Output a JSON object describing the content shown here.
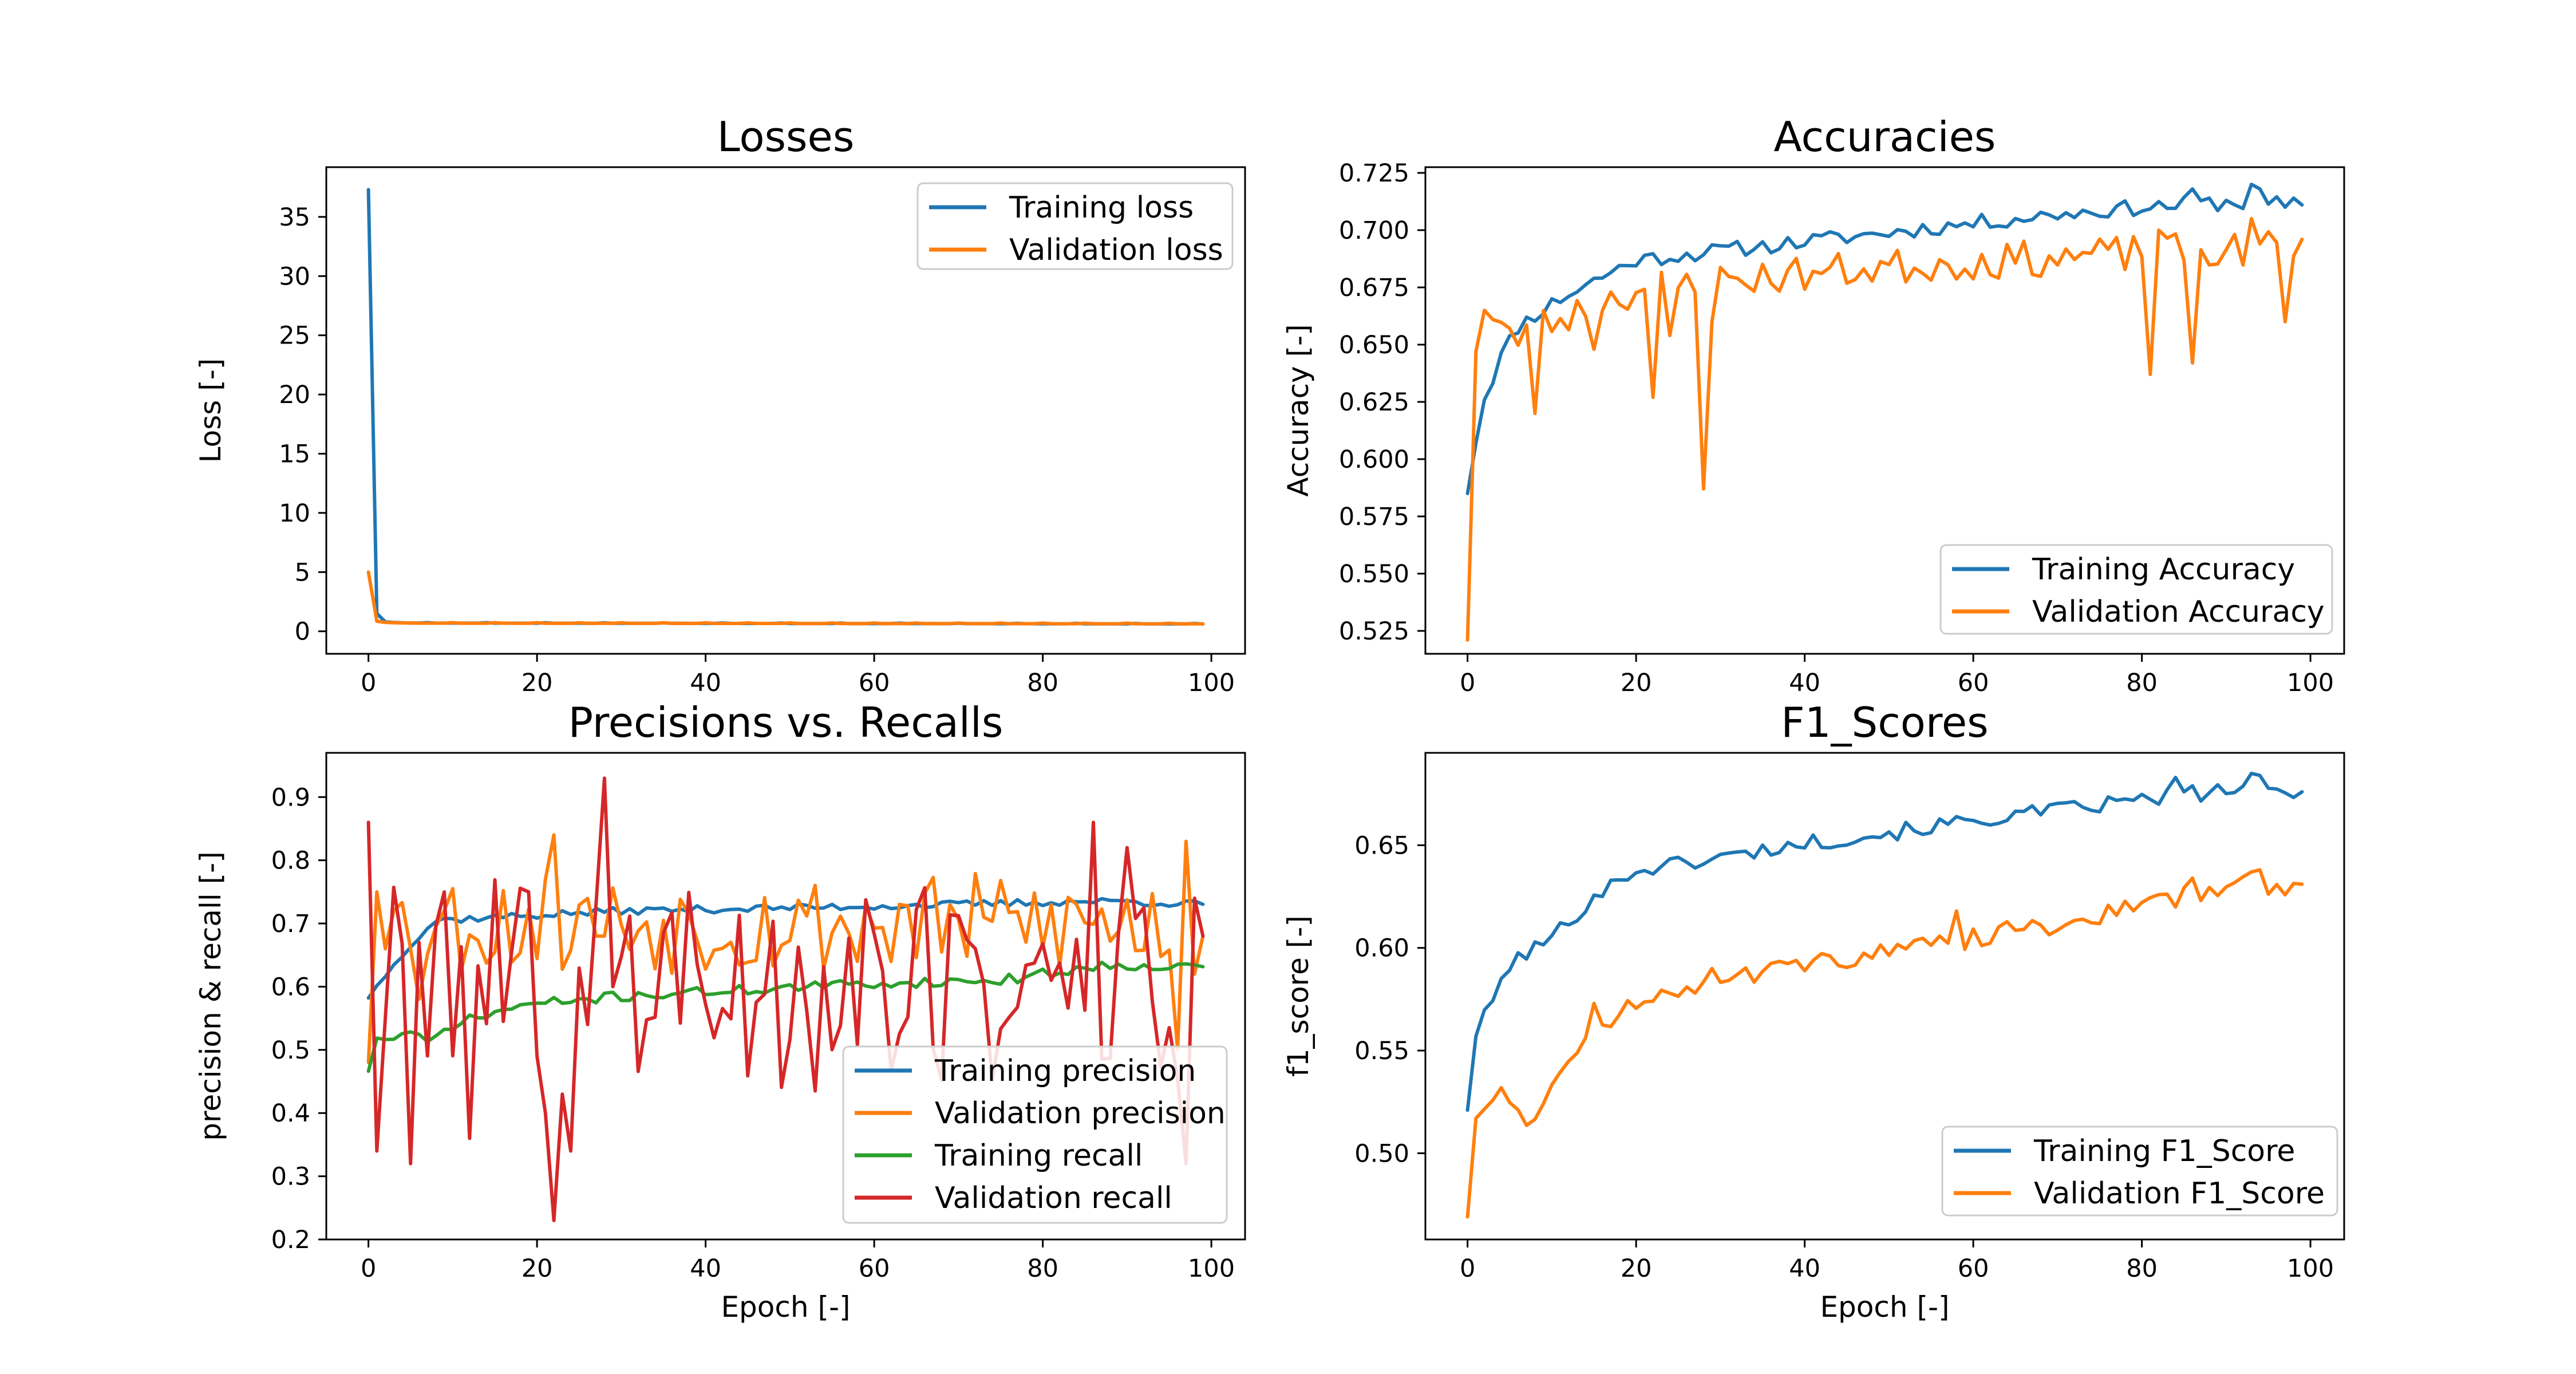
{
  "figure": {
    "background": "#ffffff"
  },
  "chart_data": [
    {
      "id": "losses",
      "type": "line",
      "title": "Losses",
      "xlabel": "",
      "ylabel": "Loss [-]",
      "xlim": [
        -5,
        104
      ],
      "ylim": [
        -1.9,
        39.2
      ],
      "xticks": [
        0,
        20,
        40,
        60,
        80,
        100
      ],
      "yticks": [
        0,
        5,
        10,
        15,
        20,
        25,
        30,
        35
      ],
      "ytick_labels": [
        "0",
        "5",
        "10",
        "15",
        "20",
        "25",
        "30",
        "35"
      ],
      "legend_loc": "upper right",
      "grid": false,
      "series": [
        {
          "name": "Training loss",
          "color": "#1f77b4",
          "gen": "loss_train"
        },
        {
          "name": "Validation loss",
          "color": "#ff7f0e",
          "gen": "loss_val"
        }
      ]
    },
    {
      "id": "accuracies",
      "type": "line",
      "title": "Accuracies",
      "xlabel": "",
      "ylabel": "Accuracy [-]",
      "xlim": [
        -5,
        104
      ],
      "ylim": [
        0.515,
        0.7275
      ],
      "xticks": [
        0,
        20,
        40,
        60,
        80,
        100
      ],
      "yticks": [
        0.525,
        0.55,
        0.575,
        0.6,
        0.625,
        0.65,
        0.675,
        0.7,
        0.725
      ],
      "ytick_labels": [
        "0.525",
        "0.550",
        "0.575",
        "0.600",
        "0.625",
        "0.650",
        "0.675",
        "0.700",
        "0.725"
      ],
      "legend_loc": "lower right",
      "grid": false,
      "series": [
        {
          "name": "Training Accuracy",
          "color": "#1f77b4",
          "gen": "acc_train"
        },
        {
          "name": "Validation Accuracy",
          "color": "#ff7f0e",
          "gen": "acc_val"
        }
      ]
    },
    {
      "id": "precision-recall",
      "type": "line",
      "title": "Precisions vs. Recalls",
      "xlabel": "Epoch [-]",
      "ylabel": "precision & recall [-]",
      "xlim": [
        -5,
        104
      ],
      "ylim": [
        0.2,
        0.97
      ],
      "xticks": [
        0,
        20,
        40,
        60,
        80,
        100
      ],
      "yticks": [
        0.2,
        0.3,
        0.4,
        0.5,
        0.6,
        0.7,
        0.8,
        0.9
      ],
      "ytick_labels": [
        "0.2",
        "0.3",
        "0.4",
        "0.5",
        "0.6",
        "0.7",
        "0.8",
        "0.9"
      ],
      "legend_loc": "lower right",
      "grid": false,
      "series": [
        {
          "name": "Training precision",
          "color": "#1f77b4",
          "gen": "prec_train"
        },
        {
          "name": "Validation precision",
          "color": "#ff7f0e",
          "gen": "prec_val"
        },
        {
          "name": "Training recall",
          "color": "#2ca02c",
          "gen": "rec_train"
        },
        {
          "name": "Validation recall",
          "color": "#d62728",
          "gen": "rec_val"
        }
      ]
    },
    {
      "id": "f1",
      "type": "line",
      "title": "F1_Scores",
      "xlabel": "Epoch [-]",
      "ylabel": "f1_score [-]",
      "xlim": [
        -5,
        104
      ],
      "ylim": [
        0.458,
        0.695
      ],
      "xticks": [
        0,
        20,
        40,
        60,
        80,
        100
      ],
      "yticks": [
        0.5,
        0.55,
        0.6,
        0.65
      ],
      "ytick_labels": [
        "0.50",
        "0.55",
        "0.60",
        "0.65"
      ],
      "legend_loc": "lower right",
      "grid": false,
      "series": [
        {
          "name": "Training F1_Score",
          "color": "#1f77b4",
          "gen": "f1_train"
        },
        {
          "name": "Validation F1_Score",
          "color": "#ff7f0e",
          "gen": "f1_val"
        }
      ]
    }
  ]
}
